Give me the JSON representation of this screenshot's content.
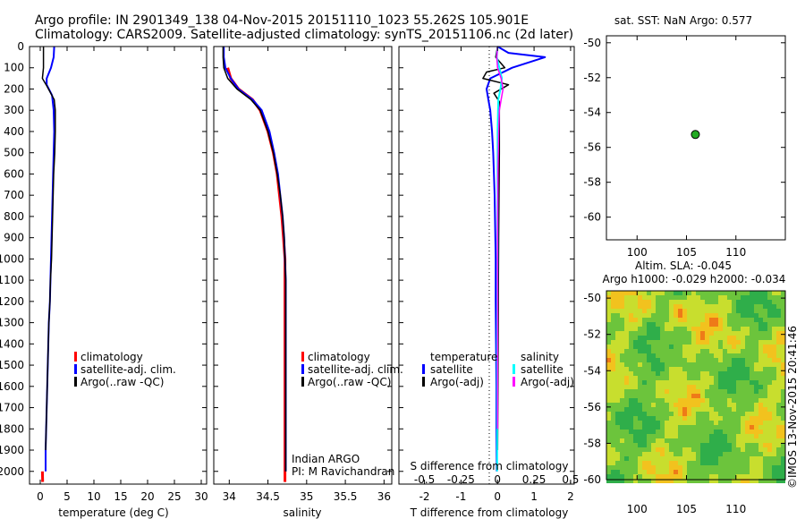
{
  "title": {
    "line1": "Argo profile: IN 2901349_138 04-Nov-2015 20151110_1023 55.262S 105.901E",
    "line2": "Climatology: CARS2009. Satellite-adjusted climatology: synTS_20151106.nc (2d later)"
  },
  "colors": {
    "climatology": "#ff0000",
    "satellite": "#0000ff",
    "argo": "#000000",
    "sal_satellite": "#00ffff",
    "sal_argo": "#ff00ff",
    "marker_fill": "#22aa22"
  },
  "depth_ticks": [
    "0",
    "100",
    "200",
    "300",
    "400",
    "500",
    "600",
    "700",
    "800",
    "900",
    "1000",
    "1100",
    "1200",
    "1300",
    "1400",
    "1500",
    "1600",
    "1700",
    "1800",
    "1900",
    "2000"
  ],
  "chart_data": [
    {
      "type": "line",
      "id": "temperature",
      "xlabel": "temperature (deg C)",
      "xlim": [
        -2,
        31
      ],
      "ylim": [
        2060,
        0
      ],
      "xticks": [
        "0",
        "5",
        "10",
        "15",
        "20",
        "25",
        "30"
      ],
      "legend": [
        "climatology",
        "satellite-adj. clim.",
        "Argo(..raw -QC)"
      ],
      "series": [
        {
          "name": "climatology",
          "color": "#ff0000",
          "width": 3,
          "points": [
            [
              0.4,
              2000
            ],
            [
              0.45,
              2050
            ]
          ]
        },
        {
          "name": "satellite-adj. clim.",
          "color": "#0000ff",
          "width": 2,
          "points": [
            [
              2.6,
              0
            ],
            [
              2.5,
              50
            ],
            [
              2.0,
              100
            ],
            [
              1.2,
              150
            ],
            [
              1.2,
              180
            ],
            [
              2.2,
              230
            ],
            [
              2.5,
              300
            ],
            [
              2.6,
              400
            ],
            [
              2.5,
              500
            ],
            [
              2.4,
              600
            ],
            [
              2.3,
              700
            ],
            [
              2.2,
              800
            ],
            [
              2.1,
              900
            ],
            [
              2.0,
              1000
            ],
            [
              1.9,
              1100
            ],
            [
              1.8,
              1200
            ],
            [
              1.6,
              1300
            ],
            [
              1.5,
              1400
            ],
            [
              1.4,
              1500
            ],
            [
              1.3,
              1600
            ],
            [
              1.2,
              1700
            ],
            [
              1.1,
              1800
            ],
            [
              1.0,
              1900
            ],
            [
              1.0,
              2000
            ]
          ]
        },
        {
          "name": "Argo(..raw -QC)",
          "color": "#000000",
          "width": 1.5,
          "points": [
            [
              0.6,
              0
            ],
            [
              0.6,
              50
            ],
            [
              0.6,
              100
            ],
            [
              0.4,
              150
            ],
            [
              1.1,
              180
            ],
            [
              2.6,
              250
            ],
            [
              2.8,
              300
            ],
            [
              2.8,
              400
            ],
            [
              2.7,
              500
            ],
            [
              2.5,
              600
            ],
            [
              2.4,
              700
            ],
            [
              2.3,
              800
            ],
            [
              2.2,
              900
            ],
            [
              2.1,
              1000
            ],
            [
              1.9,
              1100
            ],
            [
              1.8,
              1200
            ],
            [
              1.6,
              1300
            ],
            [
              1.5,
              1400
            ],
            [
              1.4,
              1500
            ],
            [
              1.3,
              1600
            ],
            [
              1.2,
              1700
            ],
            [
              1.1,
              1800
            ],
            [
              1.0,
              1900
            ]
          ]
        }
      ]
    },
    {
      "type": "line",
      "id": "salinity",
      "xlabel": "salinity",
      "xlim": [
        33.8,
        36.1
      ],
      "ylim": [
        2060,
        0
      ],
      "xticks": [
        "34",
        "34.5",
        "35",
        "35.5",
        "36"
      ],
      "legend": [
        "climatology",
        "satellite-adj. clim.",
        "Argo(..raw -QC)"
      ],
      "annotation": [
        "Indian ARGO",
        "PI: M Ravichandran"
      ],
      "series": [
        {
          "name": "climatology",
          "color": "#ff0000",
          "width": 3,
          "points": [
            [
              33.98,
              100
            ],
            [
              34.02,
              150
            ],
            [
              34.12,
              200
            ],
            [
              34.3,
              250
            ],
            [
              34.4,
              300
            ],
            [
              34.5,
              400
            ],
            [
              34.57,
              500
            ],
            [
              34.62,
              600
            ],
            [
              34.65,
              700
            ],
            [
              34.68,
              800
            ],
            [
              34.7,
              900
            ],
            [
              34.72,
              1000
            ],
            [
              34.72,
              1100
            ],
            [
              34.72,
              1200
            ],
            [
              34.72,
              1300
            ],
            [
              34.72,
              1400
            ],
            [
              34.72,
              1500
            ],
            [
              34.72,
              1600
            ],
            [
              34.72,
              1700
            ],
            [
              34.72,
              1800
            ],
            [
              34.72,
              1900
            ],
            [
              34.72,
              2000
            ],
            [
              34.72,
              2050
            ]
          ]
        },
        {
          "name": "satellite-adj. clim.",
          "color": "#0000ff",
          "width": 2,
          "points": [
            [
              33.93,
              0
            ],
            [
              33.93,
              50
            ],
            [
              33.95,
              100
            ],
            [
              34.02,
              150
            ],
            [
              34.12,
              200
            ],
            [
              34.3,
              250
            ],
            [
              34.42,
              300
            ],
            [
              34.52,
              400
            ],
            [
              34.58,
              500
            ],
            [
              34.63,
              600
            ],
            [
              34.66,
              700
            ],
            [
              34.69,
              800
            ],
            [
              34.71,
              900
            ],
            [
              34.72,
              1000
            ],
            [
              34.73,
              1100
            ],
            [
              34.73,
              1200
            ],
            [
              34.73,
              1300
            ],
            [
              34.73,
              1400
            ],
            [
              34.73,
              1500
            ],
            [
              34.73,
              1600
            ],
            [
              34.73,
              1700
            ],
            [
              34.73,
              1800
            ],
            [
              34.73,
              1900
            ],
            [
              34.73,
              2000
            ]
          ]
        },
        {
          "name": "Argo(..raw -QC)",
          "color": "#000000",
          "width": 1.5,
          "points": [
            [
              33.92,
              0
            ],
            [
              33.92,
              50
            ],
            [
              33.93,
              100
            ],
            [
              33.98,
              150
            ],
            [
              34.1,
              200
            ],
            [
              34.28,
              250
            ],
            [
              34.4,
              300
            ],
            [
              34.5,
              400
            ],
            [
              34.57,
              500
            ],
            [
              34.62,
              600
            ],
            [
              34.66,
              700
            ],
            [
              34.69,
              800
            ],
            [
              34.71,
              900
            ],
            [
              34.72,
              1000
            ],
            [
              34.73,
              1100
            ],
            [
              34.73,
              1200
            ],
            [
              34.73,
              1300
            ],
            [
              34.73,
              1400
            ],
            [
              34.73,
              1500
            ],
            [
              34.73,
              1600
            ],
            [
              34.73,
              1700
            ],
            [
              34.73,
              1800
            ],
            [
              34.73,
              1900
            ],
            [
              34.73,
              2000
            ]
          ]
        }
      ]
    },
    {
      "type": "line",
      "id": "difference",
      "xlabel": "T difference from climatology",
      "xlabel_top": "S difference from climatology",
      "xlim": [
        -2.7,
        2.1
      ],
      "ylim": [
        2060,
        0
      ],
      "xticks": [
        "-2",
        "-1",
        "0",
        "1",
        "2"
      ],
      "xticks_top": [
        "-0.5",
        "-0.25",
        "0",
        "0.25",
        "0.5"
      ],
      "legend_temperature_title": "temperature",
      "legend_salinity_title": "salinity",
      "legend_temperature": [
        "satellite",
        "Argo(-adj)"
      ],
      "legend_salinity": [
        "satellite",
        "Argo(-adj)"
      ],
      "series": [
        {
          "name": "temperature satellite",
          "color": "#0000ff",
          "width": 2,
          "points": [
            [
              0,
              0
            ],
            [
              0.3,
              30
            ],
            [
              1.3,
              50
            ],
            [
              0.4,
              100
            ],
            [
              -0.2,
              150
            ],
            [
              -0.3,
              200
            ],
            [
              -0.25,
              250
            ],
            [
              -0.2,
              300
            ],
            [
              -0.15,
              400
            ],
            [
              -0.12,
              500
            ],
            [
              -0.1,
              600
            ],
            [
              -0.08,
              700
            ],
            [
              -0.07,
              800
            ],
            [
              -0.06,
              900
            ],
            [
              -0.05,
              1000
            ],
            [
              -0.05,
              1200
            ],
            [
              -0.04,
              1400
            ],
            [
              -0.03,
              1600
            ],
            [
              -0.03,
              1800
            ],
            [
              -0.02,
              2000
            ]
          ]
        },
        {
          "name": "temperature Argo(-adj)",
          "color": "#000000",
          "width": 1.5,
          "points": [
            [
              0,
              0
            ],
            [
              -0.05,
              50
            ],
            [
              0.2,
              100
            ],
            [
              -0.3,
              120
            ],
            [
              -0.4,
              150
            ],
            [
              0.3,
              180
            ],
            [
              -0.1,
              220
            ],
            [
              0.05,
              260
            ],
            [
              0.05,
              300
            ],
            [
              0.05,
              400
            ],
            [
              0.05,
              500
            ],
            [
              0.04,
              700
            ],
            [
              0.03,
              900
            ],
            [
              0.02,
              1200
            ],
            [
              0.01,
              1600
            ],
            [
              0.0,
              1900
            ]
          ]
        },
        {
          "name": "salinity satellite",
          "color": "#00ffff",
          "width": 2,
          "points": [
            [
              0,
              0
            ],
            [
              -0.02,
              50
            ],
            [
              0.05,
              100
            ],
            [
              0.12,
              150
            ],
            [
              0.08,
              200
            ],
            [
              0.02,
              250
            ],
            [
              0.0,
              400
            ],
            [
              0.0,
              700
            ],
            [
              0.0,
              1000
            ],
            [
              -0.01,
              1400
            ],
            [
              -0.01,
              1800
            ],
            [
              -0.01,
              2000
            ]
          ]
        },
        {
          "name": "salinity Argo(-adj)",
          "color": "#ff00ff",
          "width": 1.5,
          "points": [
            [
              0,
              0
            ],
            [
              -0.02,
              50
            ],
            [
              0.0,
              100
            ],
            [
              0.1,
              150
            ],
            [
              0.15,
              200
            ],
            [
              0.1,
              250
            ],
            [
              0.05,
              300
            ],
            [
              0.03,
              400
            ],
            [
              0.01,
              600
            ],
            [
              0.0,
              900
            ],
            [
              0.0,
              1300
            ],
            [
              0.0,
              1800
            ]
          ]
        }
      ]
    },
    {
      "type": "scatter",
      "id": "position_map",
      "title": "sat. SST: NaN Argo: 0.577",
      "xlim": [
        96.9,
        115
      ],
      "ylim": [
        -61.3,
        -49.6
      ],
      "xticks": [
        "100",
        "105",
        "110"
      ],
      "yticks": [
        "-50",
        "-52",
        "-54",
        "-56",
        "-58",
        "-60"
      ],
      "points": [
        [
          105.9,
          -55.26
        ]
      ]
    },
    {
      "type": "heatmap",
      "id": "altimetry",
      "title_line1": "Altim. SLA: -0.045",
      "title_line2": "Argo h1000: -0.029 h2000: -0.034",
      "xlim": [
        96.9,
        115
      ],
      "ylim": [
        -60,
        -49.6
      ],
      "xticks": [
        "100",
        "105",
        "110"
      ],
      "yticks": [
        "-50",
        "-52",
        "-54",
        "-56",
        "-58",
        "-60"
      ]
    }
  ],
  "watermark": "©IMOS 13-Nov-2015 20:41:46"
}
